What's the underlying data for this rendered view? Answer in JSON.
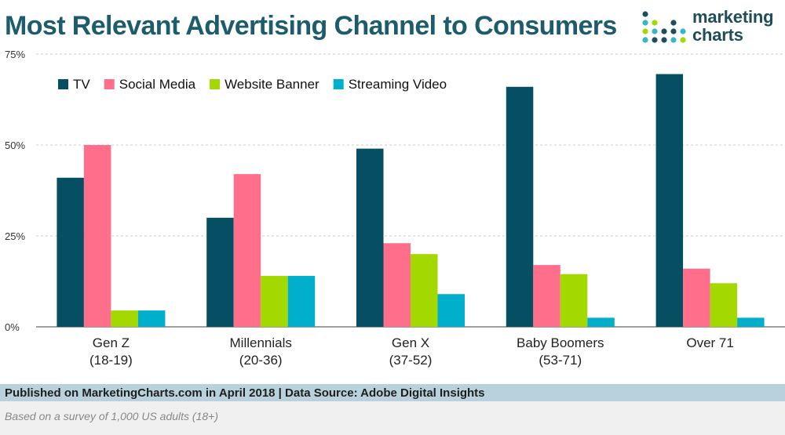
{
  "header": {
    "title": "Most Relevant Advertising Channel to Consumers",
    "logo_line1": "marketing",
    "logo_line2": "charts"
  },
  "chart_data": {
    "type": "bar",
    "title": "Most Relevant Advertising Channel to Consumers",
    "categories": [
      "Gen Z",
      "Millennials",
      "Gen X",
      "Baby Boomers",
      "Over 71"
    ],
    "category_sublabels": [
      "(18-19)",
      "(20-36)",
      "(37-52)",
      "(53-71)",
      ""
    ],
    "series": [
      {
        "name": "TV",
        "color": "#064e62",
        "values": [
          41,
          30,
          49,
          66,
          69.5
        ]
      },
      {
        "name": "Social Media",
        "color": "#ff6e8a",
        "values": [
          50,
          42,
          23,
          17,
          16
        ]
      },
      {
        "name": "Website Banner",
        "color": "#a3d900",
        "values": [
          4.5,
          14,
          20,
          14.5,
          12
        ]
      },
      {
        "name": "Streaming Video",
        "color": "#00afcc",
        "values": [
          4.5,
          14,
          9,
          2.5,
          2.5
        ]
      }
    ],
    "yticks": [
      "0%",
      "25%",
      "50%",
      "75%"
    ],
    "ylim": [
      0,
      75
    ],
    "xlabel": "",
    "ylabel": "",
    "legend": "top-left",
    "grid": true
  },
  "footer": {
    "source": "Published on MarketingCharts.com in April 2018 | Data Source: Adobe Digital Insights",
    "note": "Based on a survey of 1,000 US adults (18+)"
  }
}
